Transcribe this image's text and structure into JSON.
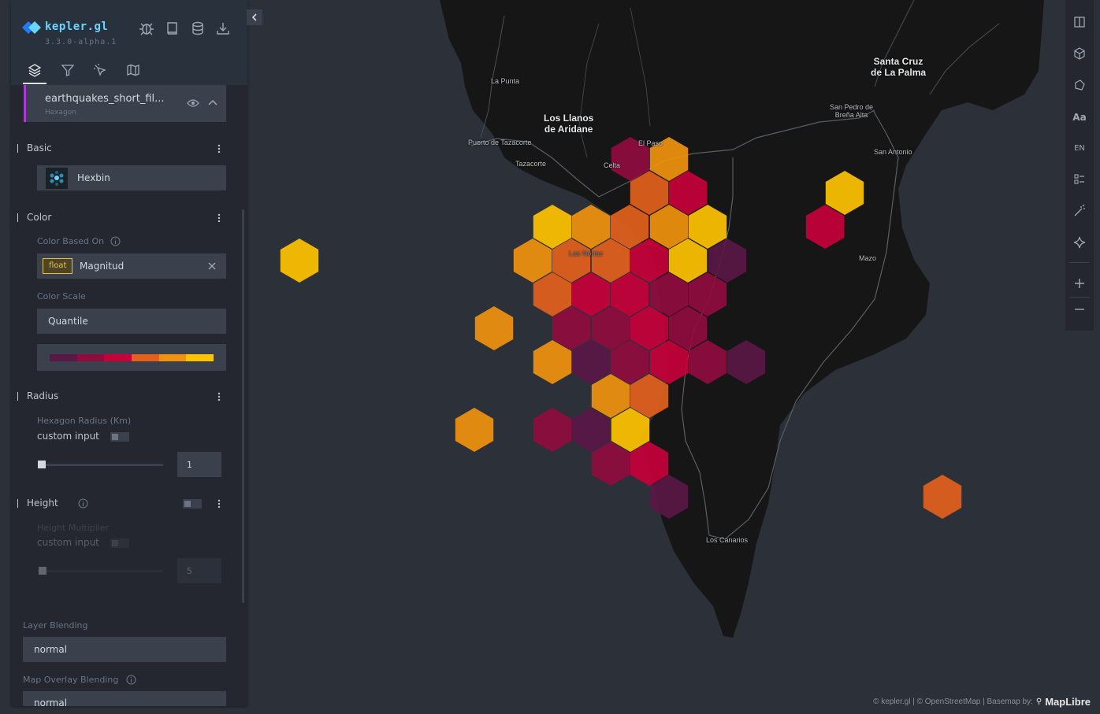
{
  "app": {
    "title": "kepler.gl",
    "version": "3.3.0-alpha.1",
    "brand_color": "#6ad3ff"
  },
  "header_icons": [
    "bug-icon",
    "docs-book-icon",
    "database-icon",
    "export-download-icon"
  ],
  "tabs": [
    {
      "name": "layers",
      "icon": "layers-icon",
      "active": true
    },
    {
      "name": "filters",
      "icon": "filter-icon",
      "active": false
    },
    {
      "name": "interactions",
      "icon": "cursor-click-icon",
      "active": false
    },
    {
      "name": "basemap",
      "icon": "map-icon",
      "active": false
    }
  ],
  "layer": {
    "name": "earthquakes_short_fil...",
    "type": "Hexagon",
    "accent_color": "#a93bd2"
  },
  "basic": {
    "title": "Basic",
    "layer_type_label": "Hexbin"
  },
  "color": {
    "title": "Color",
    "based_on_label": "Color Based On",
    "field_type": "float",
    "field_name": "Magnitud",
    "scale_label": "Color Scale",
    "scale_value": "Quantile",
    "palette": [
      "#5a1846",
      "#900c3f",
      "#c70039",
      "#e3611c",
      "#f1920e",
      "#ffc300"
    ]
  },
  "radius": {
    "title": "Radius",
    "field_label": "Hexagon Radius (Km)",
    "custom_input_label": "custom input",
    "value": "1"
  },
  "height": {
    "title": "Height",
    "multiplier_label": "Height Multiplier",
    "custom_input_label": "custom input",
    "value": "5"
  },
  "blending": {
    "layer_label": "Layer Blending",
    "layer_value": "normal",
    "overlay_label": "Map Overlay Blending",
    "overlay_value": "normal"
  },
  "map_labels": {
    "la_punta": "La Punta",
    "los_llanos_1": "Los Llanos",
    "los_llanos_2": "de Aridane",
    "puerto_tazacorte": "Puerto de Tazacorte",
    "tazacorte": "Tazacorte",
    "el_paso": "El Paso",
    "celta": "Celta",
    "las_norias": "Las Norias",
    "santa_cruz_1": "Santa Cruz",
    "santa_cruz_2": "de La Palma",
    "san_pedro_1": "San Pedro de",
    "san_pedro_2": "Breña Alta",
    "san_antonio": "San Antonio",
    "mazo": "Mazo",
    "los_canarios": "Los Canarios"
  },
  "toolbar": {
    "text_label_btn": "Aa",
    "locale_btn": "EN",
    "icons": [
      "split-map-icon",
      "3d-cube-icon",
      "draw-polygon-icon",
      "text-label-icon",
      "locale-icon",
      "legend-icon",
      "magic-wand-icon",
      "ai-sparkle-icon",
      "zoom-in-icon",
      "zoom-out-icon"
    ]
  },
  "attribution": {
    "text": "© kepler.gl | © OpenStreetMap | Basemap by:",
    "brand": "MapLibre"
  }
}
